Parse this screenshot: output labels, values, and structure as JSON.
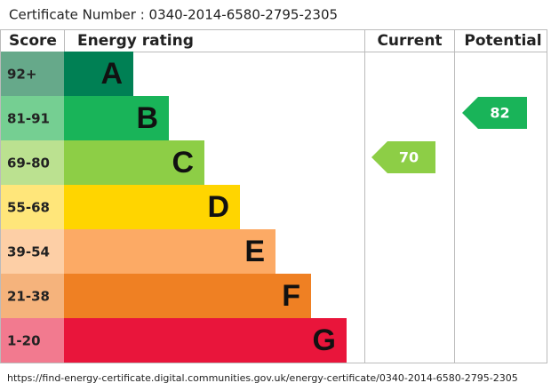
{
  "header": {
    "certificate": "Certificate Number : 0340-2014-6580-2795-2305"
  },
  "table": {
    "columns": [
      "Score",
      "Energy rating",
      "Current",
      "Potential"
    ],
    "bands": [
      {
        "score": "92+",
        "letter": "A",
        "color": "#008054",
        "score_color": "#66a98a"
      },
      {
        "score": "81-91",
        "letter": "B",
        "color": "#19b459",
        "score_color": "#75cf92"
      },
      {
        "score": "69-80",
        "letter": "C",
        "color": "#8dce46",
        "score_color": "#bbe190"
      },
      {
        "score": "55-68",
        "letter": "D",
        "color": "#ffd500",
        "score_color": "#ffe67a"
      },
      {
        "score": "39-54",
        "letter": "E",
        "color": "#fcaa65",
        "score_color": "#fdcfa6"
      },
      {
        "score": "21-38",
        "letter": "F",
        "color": "#ef8023",
        "score_color": "#f5b37c"
      },
      {
        "score": "1-20",
        "letter": "G",
        "color": "#e9153b",
        "score_color": "#f27a8f"
      }
    ],
    "current": 70,
    "potential": 82
  },
  "footer": {
    "url": "https://find-energy-certificate.digital.communities.gov.uk/energy-certificate/0340-2014-6580-2795-2305"
  }
}
